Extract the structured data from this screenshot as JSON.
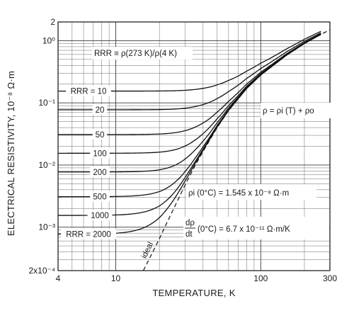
{
  "chart_data": {
    "type": "line",
    "x_scale": "log",
    "y_scale": "log",
    "xlim": [
      4,
      300
    ],
    "ylim": [
      0.0002,
      2
    ],
    "grid": true,
    "xlabel": "TEMPERATURE, K",
    "ylabel": "ELECTRICAL RESISTIVITY, 10⁻⁸ Ω·m",
    "x_ticks": [
      {
        "value": 4,
        "label": "4"
      },
      {
        "value": 10,
        "label": "10"
      },
      {
        "value": 100,
        "label": "100"
      },
      {
        "value": 300,
        "label": "300"
      }
    ],
    "y_ticks": [
      {
        "value": 0.0002,
        "label": "2x10⁻⁴"
      },
      {
        "value": 0.001,
        "label": "10⁻³"
      },
      {
        "value": 0.01,
        "label": "10⁻²"
      },
      {
        "value": 0.1,
        "label": "10⁻¹"
      },
      {
        "value": 1,
        "label": "10⁰"
      },
      {
        "value": 2,
        "label": "2"
      }
    ],
    "ideal": {
      "label": "ideal",
      "x": [
        15.5,
        18,
        20,
        22,
        25,
        30,
        35,
        40,
        50,
        60,
        80,
        100,
        150,
        200,
        250,
        300
      ],
      "y": [
        0.0002,
        0.0004,
        0.00065,
        0.00105,
        0.00195,
        0.0047,
        0.0095,
        0.0165,
        0.04,
        0.075,
        0.17,
        0.28,
        0.58,
        0.9,
        1.2,
        1.5
      ]
    },
    "series": [
      {
        "name": "RRR = 10",
        "rho0": 0.1545,
        "label_text": "RRR = 10"
      },
      {
        "name": "RRR = 20",
        "rho0": 0.07725,
        "label_text": "20"
      },
      {
        "name": "RRR = 50",
        "rho0": 0.0309,
        "label_text": "50"
      },
      {
        "name": "RRR = 100",
        "rho0": 0.01545,
        "label_text": "100"
      },
      {
        "name": "RRR = 200",
        "rho0": 0.007725,
        "label_text": "200"
      },
      {
        "name": "RRR = 500",
        "rho0": 0.00309,
        "label_text": "500"
      },
      {
        "name": "RRR = 1000",
        "rho0": 0.001545,
        "label_text": "1000"
      },
      {
        "name": "RRR = 2000",
        "rho0": 0.0007725,
        "label_text": "RRR = 2000"
      }
    ],
    "annotations": {
      "rrr_definition": "RRR ≡ ρ(273 K)/ρ(4 K)",
      "rho_formula": "ρ = ρi (T) + ρo",
      "rho_i_value": "ρi (0°C) = 1.545 x 10⁻⁸ Ω·m",
      "drho_dt_value": "(0°C) = 6.7 x 10⁻¹¹ Ω·m/K",
      "drho_dt_symbol_num": "dρ",
      "drho_dt_symbol_den": "dt"
    }
  }
}
